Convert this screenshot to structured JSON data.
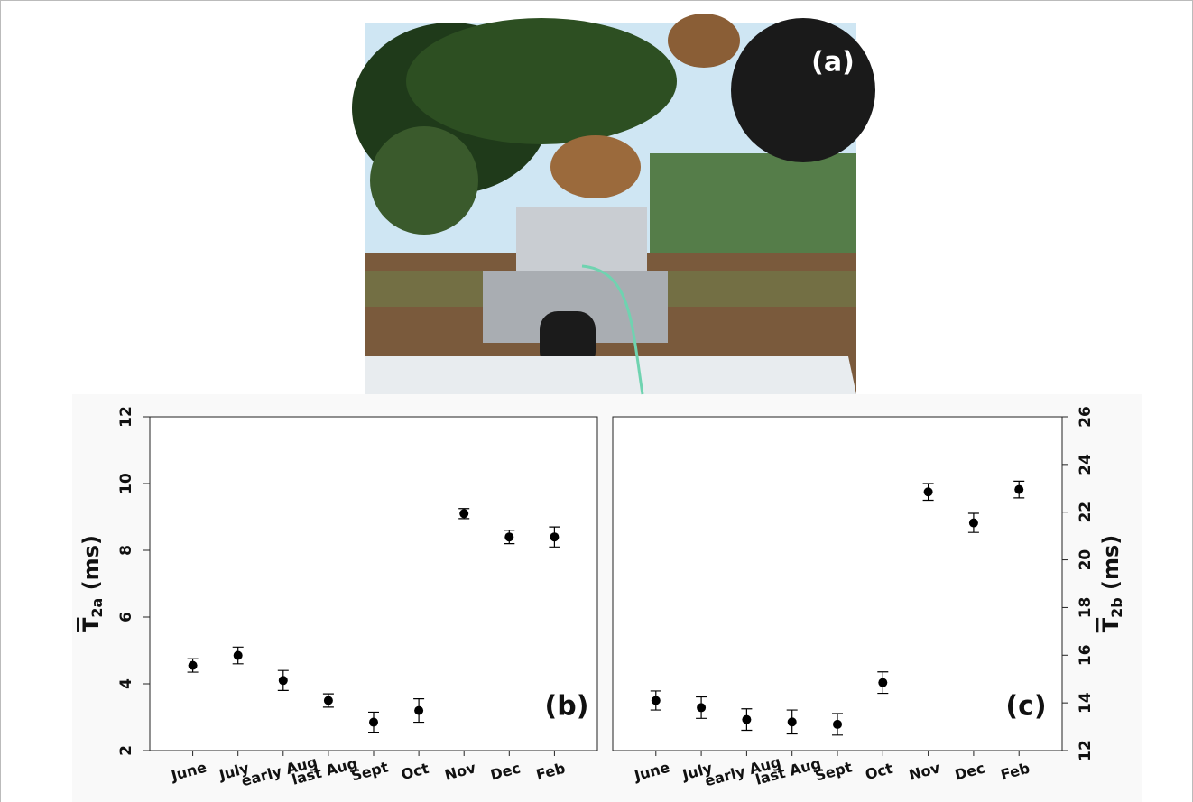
{
  "photo": {
    "label": "(a)"
  },
  "chart_data": [
    {
      "type": "scatter",
      "categories": [
        "June",
        "July",
        "early Aug",
        "last Aug",
        "Sept",
        "Oct",
        "Nov",
        "Dec",
        "Feb"
      ],
      "series": [
        {
          "color": "#000000",
          "values": [
            4.55,
            4.85,
            4.1,
            3.5,
            2.85,
            3.2,
            9.1,
            8.4,
            8.4
          ],
          "errors": [
            0.2,
            0.25,
            0.3,
            0.2,
            0.3,
            0.35,
            0.15,
            0.2,
            0.3
          ]
        }
      ],
      "ylim": [
        2,
        12
      ],
      "yticks": [
        2,
        4,
        6,
        8,
        10,
        12
      ],
      "y_label": {
        "symbol": "T",
        "subscript": "2a",
        "unit": "(ms)"
      },
      "annotation": "(b)"
    },
    {
      "type": "scatter",
      "categories": [
        "June",
        "July",
        "early Aug",
        "last Aug",
        "Sept",
        "Oct",
        "Nov",
        "Dec",
        "Feb"
      ],
      "series": [
        {
          "color": "#000000",
          "axis": "y2",
          "values": [
            14.1,
            13.8,
            13.3,
            13.2,
            13.1,
            14.85,
            22.85,
            21.55,
            22.95
          ],
          "errors": [
            0.4,
            0.45,
            0.45,
            0.5,
            0.45,
            0.45,
            0.35,
            0.4,
            0.35
          ]
        }
      ],
      "y2lim": [
        12,
        26
      ],
      "y2ticks": [
        12,
        14,
        16,
        18,
        20,
        22,
        24,
        26
      ],
      "y2_label": {
        "symbol": "T",
        "subscript": "2b",
        "unit": "(ms)"
      },
      "annotation": "(c)"
    }
  ]
}
